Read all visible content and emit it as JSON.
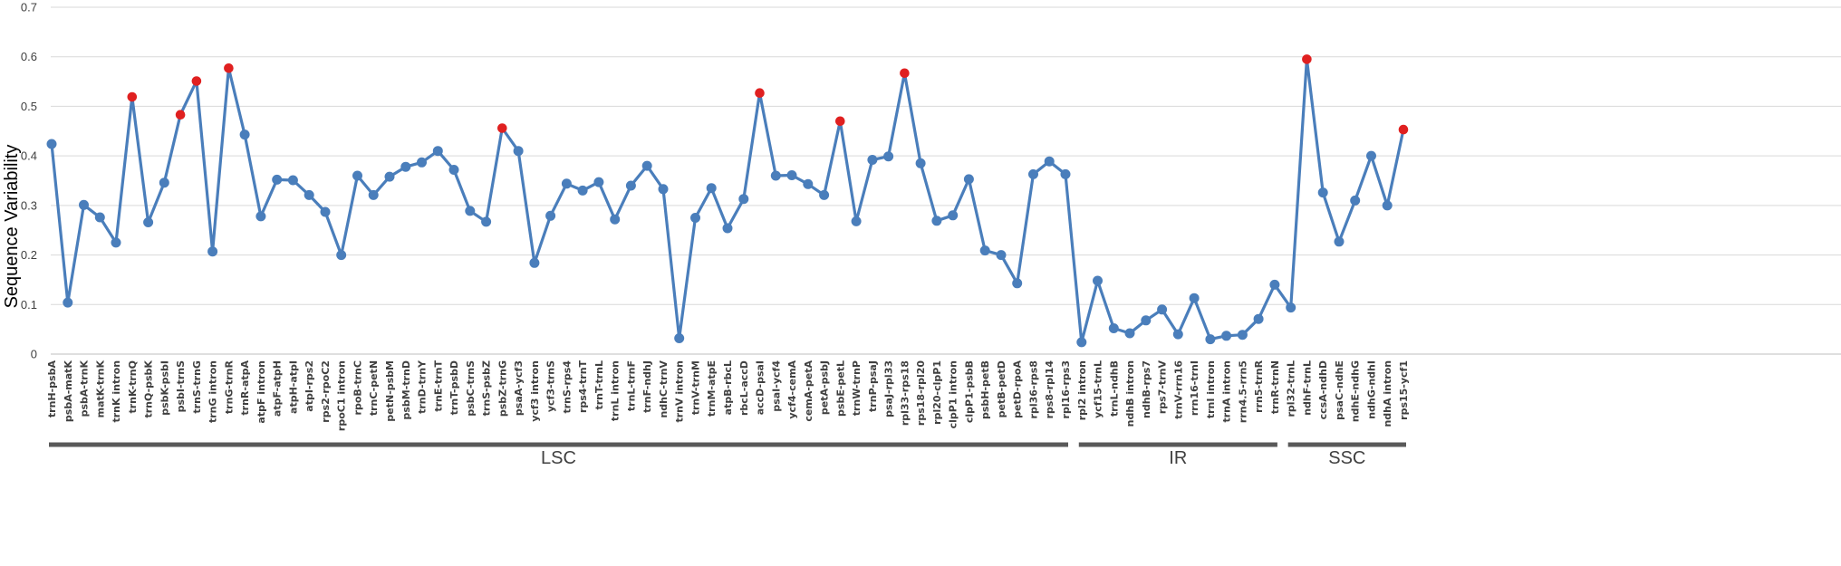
{
  "chart_data": {
    "type": "line",
    "ylabel": "Sequence Variability",
    "ylim": [
      0,
      0.7
    ],
    "yticks": [
      "0",
      "0.1",
      "0.2",
      "0.3",
      "0.4",
      "0.5",
      "0.6",
      "0.7"
    ],
    "grid": true,
    "legend": "none",
    "colors": {
      "line": "#4a7ebb",
      "point": "#4a7ebb",
      "highlight": "#e02020",
      "region_bar": "#595959"
    },
    "categories": [
      "trnH-psbA",
      "psbA-matK",
      "psbA-trnK",
      "matK-trnK",
      "trnK intron",
      "trnK-trnQ",
      "trnQ-psbK",
      "psbK-psbI",
      "psbI-trnS",
      "trnS-trnG",
      "trnG intron",
      "trnG-trnR",
      "trnR-atpA",
      "atpF intron",
      "atpF-atpH",
      "atpH-atpI",
      "atpI-rps2",
      "rps2-rpoC2",
      "rpoC1 intron",
      "rpoB-trnC",
      "trnC-petN",
      "petN-psbM",
      "psbM-trnD",
      "trnD-trnY",
      "trnE-trnT",
      "trnT-psbD",
      "psbC-trnS",
      "trnS-psbZ",
      "psbZ-trnG",
      "psaA-ycf3",
      "ycf3 intron",
      "ycf3-trnS",
      "trnS-rps4",
      "rps4-trnT",
      "trnT-trnL",
      "trnL intron",
      "trnL-trnF",
      "trnF-ndhJ",
      "ndhC-trnV",
      "trnV intron",
      "trnV-trnM",
      "trnM-atpE",
      "atpB-rbcL",
      "rbcL-accD",
      "accD-psaI",
      "psaI-ycf4",
      "ycf4-cemA",
      "cemA-petA",
      "petA-psbJ",
      "psbE-petL",
      "trnW-trnP",
      "trnP-psaJ",
      "psaJ-rpl33",
      "rpl33-rps18",
      "rps18-rpl20",
      "rpl20-clpP1",
      "clpP1 intron",
      "clpP1-psbB",
      "psbH-petB",
      "petB-petD",
      "petD-rpoA",
      "rpl36-rps8",
      "rps8-rpl14",
      "rpl16-rps3",
      "rpl2 intron",
      "ycf15-trnL",
      "trnL-ndhB",
      "ndhB intron",
      "ndhB-rps7",
      "rps7-trnV",
      "trnV-rrn16",
      "rrn16-trnI",
      "trnI intron",
      "trnA intron",
      "rrn4.5-rrn5",
      "rrn5-trnR",
      "trnR-trnN",
      "rpl32-trnL",
      "ndhF-trnL",
      "ccsA-ndhD",
      "psaC-ndhE",
      "ndhE-ndhG",
      "ndhG-ndhI",
      "ndhA intron",
      "rps15-ycf1"
    ],
    "series": [
      {
        "values": [
          0.424,
          0.104,
          0.301,
          0.276,
          0.225,
          0.519,
          0.266,
          0.346,
          0.483,
          0.551,
          0.207,
          0.577,
          0.443,
          0.278,
          0.352,
          0.351,
          0.321,
          0.287,
          0.2,
          0.36,
          0.321,
          0.358,
          0.378,
          0.387,
          0.41,
          0.372,
          0.289,
          0.267,
          0.456,
          0.41,
          0.184,
          0.279,
          0.344,
          0.33,
          0.347,
          0.272,
          0.34,
          0.38,
          0.333,
          0.032,
          0.275,
          0.335,
          0.254,
          0.313,
          0.527,
          0.36,
          0.361,
          0.343,
          0.321,
          0.47,
          0.268,
          0.392,
          0.399,
          0.567,
          0.385,
          0.269,
          0.28,
          0.353,
          0.209,
          0.2,
          0.143,
          0.363,
          0.389,
          0.363,
          0.024,
          0.148,
          0.052,
          0.042,
          0.068,
          0.09,
          0.04,
          0.113,
          0.03,
          0.037,
          0.039,
          0.071,
          0.14,
          0.094,
          0.595,
          0.326,
          0.227,
          0.31,
          0.4,
          0.3,
          0.453
        ],
        "highlighted": [
          "trnK-trnQ",
          "psbI-trnS",
          "trnS-trnG",
          "trnG-trnR",
          "psbZ-trnG",
          "accD-psaI",
          "psbE-petL",
          "rpl33-rps18",
          "ndhF-trnL",
          "rps15-ycf1"
        ]
      }
    ],
    "regions": [
      {
        "label": "LSC",
        "start": "trnH-psbA",
        "end": "rpl16-rps3"
      },
      {
        "label": "IR",
        "start": "rpl2 intron",
        "end": "trnR-trnN"
      },
      {
        "label": "SSC",
        "start": "rpl32-trnL",
        "end": "rps15-ycf1"
      }
    ]
  }
}
